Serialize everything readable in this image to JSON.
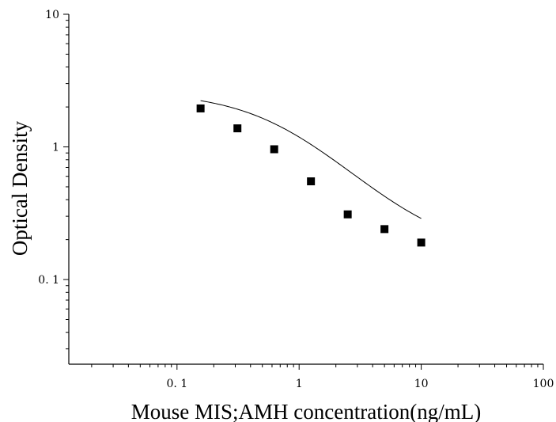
{
  "chart_data": {
    "type": "scatter",
    "title": "",
    "xlabel": "Mouse MIS;AMH concentration(ng/mL)",
    "ylabel": "Optical Density",
    "xscale": "log",
    "yscale": "log",
    "xlim": [
      0.013,
      100
    ],
    "ylim": [
      0.023,
      10
    ],
    "grid": false,
    "legend": "none",
    "x_ticks": [
      {
        "value": 0.1,
        "label": "0. 1"
      },
      {
        "value": 1,
        "label": "1"
      },
      {
        "value": 10,
        "label": "10"
      },
      {
        "value": 100,
        "label": "100"
      }
    ],
    "y_ticks": [
      {
        "value": 0.1,
        "label": "0. 1"
      },
      {
        "value": 1,
        "label": "1"
      },
      {
        "value": 10,
        "label": "10"
      }
    ],
    "series": [
      {
        "points": [
          {
            "x": 0.156,
            "y": 1.95
          },
          {
            "x": 0.3125,
            "y": 1.38
          },
          {
            "x": 0.625,
            "y": 0.96
          },
          {
            "x": 1.25,
            "y": 0.55
          },
          {
            "x": 2.5,
            "y": 0.31
          },
          {
            "x": 5,
            "y": 0.24
          },
          {
            "x": 10,
            "y": 0.19
          }
        ]
      }
    ],
    "fit_curve": {
      "type": "4PL",
      "A": 2.6,
      "D": 0.155,
      "C": 0.75,
      "B": 1.1,
      "x_range": [
        0.156,
        10
      ]
    },
    "colors": {
      "marker": "#000000",
      "curve": "#000000",
      "axis": "#000000"
    }
  }
}
